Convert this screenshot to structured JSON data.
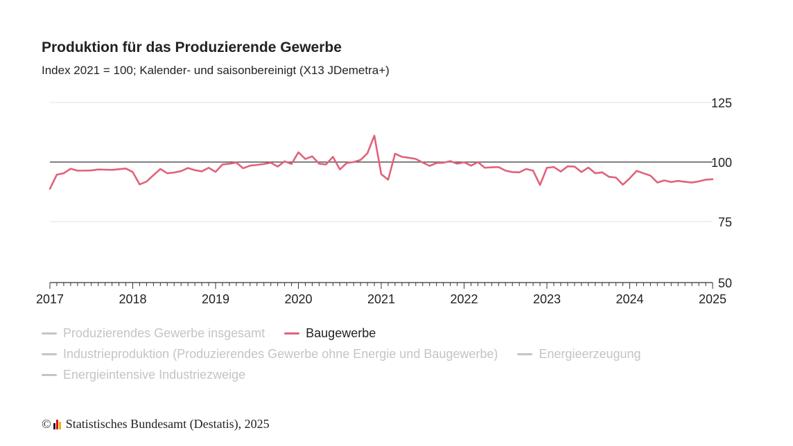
{
  "chart_data": {
    "type": "line",
    "title": "Produktion für das Produzierende Gewerbe",
    "subtitle": "Index 2021 = 100; Kalender- und saisonbereinigt (X13 JDemetra+)",
    "x_start": "2017-01",
    "x_frequency": "monthly",
    "x_tick_labels": [
      "2017",
      "2018",
      "2019",
      "2020",
      "2021",
      "2022",
      "2023",
      "2024",
      "2025"
    ],
    "y_tick_labels": [
      "125",
      "100",
      "75",
      "50"
    ],
    "y_ticks": [
      125,
      100,
      75,
      50
    ],
    "ylim": [
      50,
      125
    ],
    "reference_line": 100,
    "grid": true,
    "y_axis_position": "right",
    "legend_position": "bottom",
    "series": [
      {
        "name": "Baugewerbe",
        "color": "#e0627a",
        "active": true,
        "values": [
          88.8,
          94.7,
          95.3,
          97.2,
          96.4,
          96.4,
          96.5,
          96.9,
          96.8,
          96.7,
          97.0,
          97.3,
          95.8,
          90.6,
          91.8,
          94.5,
          97.1,
          95.3,
          95.6,
          96.2,
          97.5,
          96.6,
          96.1,
          97.6,
          95.9,
          99.0,
          99.3,
          99.8,
          97.4,
          98.5,
          98.8,
          99.2,
          99.7,
          98.1,
          100.3,
          99.2,
          104.1,
          101.3,
          102.4,
          99.3,
          99.0,
          102.2,
          96.9,
          99.6,
          100.0,
          100.9,
          103.7,
          111.1,
          94.9,
          92.6,
          103.5,
          102.2,
          101.8,
          101.3,
          99.8,
          98.4,
          99.6,
          99.7,
          100.4,
          99.3,
          99.9,
          98.5,
          100.0,
          97.6,
          97.8,
          97.9,
          96.4,
          95.8,
          95.7,
          97.1,
          96.4,
          90.4,
          97.6,
          97.9,
          96.0,
          98.2,
          98.1,
          95.8,
          97.7,
          95.3,
          95.7,
          93.8,
          93.5,
          90.5,
          93.2,
          96.3,
          95.3,
          94.3,
          91.4,
          92.3,
          91.6,
          92.1,
          91.7,
          91.4,
          91.9,
          92.6,
          92.8
        ]
      }
    ]
  },
  "legend": {
    "items": [
      {
        "label": "Produzierendes Gewerbe insgesamt",
        "color": "#c4c4c4",
        "active": false
      },
      {
        "label": "Baugewerbe",
        "color": "#e0627a",
        "active": true
      },
      {
        "label": "Industrieproduktion (Produzierendes Gewerbe ohne Energie und Baugewerbe)",
        "color": "#c4c4c4",
        "active": false
      },
      {
        "label": "Energieerzeugung",
        "color": "#c4c4c4",
        "active": false
      },
      {
        "label": "Energieintensive Industriezweige",
        "color": "#c4c4c4",
        "active": false
      }
    ]
  },
  "footer": {
    "copyright": "©",
    "text": "Statistisches Bundesamt (Destatis), 2025",
    "logo_colors": [
      "#1b1b1b",
      "#e30613",
      "#f9b000"
    ]
  }
}
